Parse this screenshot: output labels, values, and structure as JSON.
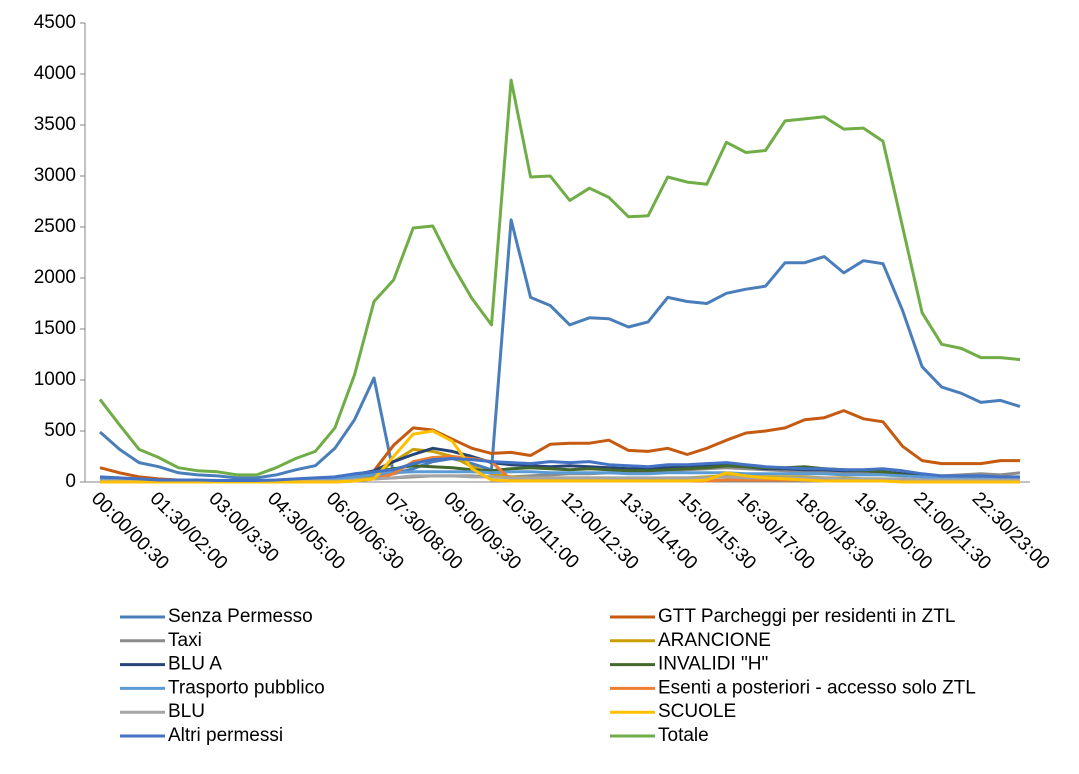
{
  "chart_data": {
    "type": "line",
    "categories": [
      "00:00/00:30",
      null,
      null,
      "01:30/02:00",
      null,
      null,
      "03:00/3:30",
      null,
      null,
      "04:30/05:00",
      null,
      null,
      "06:00/06:30",
      null,
      null,
      "07:30/08:00",
      null,
      null,
      "09:00/09:30",
      null,
      null,
      "10:30/11:00",
      null,
      null,
      "12:00/12:30",
      null,
      null,
      "13:30/14:00",
      null,
      null,
      "15:00/15:30",
      null,
      null,
      "16:30/17:00",
      null,
      null,
      "18:00/18:30",
      null,
      null,
      "19:30/20:00",
      null,
      null,
      "21:00/21:30",
      null,
      null,
      "22:30/23:00",
      null,
      null
    ],
    "ylim": [
      0,
      4500
    ],
    "yticks": [
      0,
      500,
      1000,
      1500,
      2000,
      2500,
      3000,
      3500,
      4000,
      4500
    ],
    "grid": false,
    "series": [
      {
        "name": "Senza Permesso",
        "color": "#4a7ebb",
        "values": [
          490,
          320,
          190,
          150,
          90,
          70,
          60,
          40,
          40,
          70,
          120,
          160,
          330,
          610,
          1020,
          80,
          130,
          200,
          230,
          180,
          120,
          2570,
          1810,
          1730,
          1540,
          1610,
          1600,
          1520,
          1570,
          1810,
          1770,
          1750,
          1850,
          1890,
          1920,
          2150,
          2150,
          2210,
          2050,
          2170,
          2140,
          1680,
          1130,
          930,
          870,
          780,
          800,
          740
        ]
      },
      {
        "name": "GTT Parcheggi per residenti in ZTL",
        "color": "#c55a11",
        "values": [
          140,
          90,
          50,
          30,
          20,
          15,
          10,
          10,
          10,
          10,
          20,
          30,
          40,
          70,
          110,
          360,
          530,
          510,
          420,
          330,
          280,
          290,
          260,
          370,
          380,
          380,
          410,
          310,
          300,
          330,
          270,
          330,
          410,
          480,
          500,
          530,
          610,
          630,
          700,
          620,
          590,
          350,
          210,
          180,
          180,
          180,
          210,
          210
        ]
      },
      {
        "name": "Taxi",
        "color": "#8c8c8c",
        "values": [
          30,
          20,
          15,
          10,
          10,
          5,
          5,
          5,
          5,
          5,
          10,
          10,
          15,
          20,
          30,
          40,
          50,
          60,
          60,
          60,
          50,
          50,
          60,
          70,
          80,
          80,
          90,
          90,
          100,
          110,
          120,
          130,
          140,
          130,
          120,
          110,
          100,
          100,
          90,
          90,
          80,
          70,
          60,
          60,
          70,
          80,
          70,
          90
        ]
      },
      {
        "name": "ARANCIONE",
        "color": "#c9a000",
        "values": [
          10,
          5,
          5,
          0,
          0,
          0,
          0,
          0,
          0,
          0,
          0,
          0,
          5,
          20,
          60,
          200,
          320,
          300,
          250,
          150,
          80,
          50,
          40,
          40,
          40,
          40,
          40,
          30,
          30,
          40,
          40,
          50,
          60,
          60,
          50,
          50,
          50,
          40,
          40,
          30,
          30,
          20,
          20,
          10,
          10,
          10,
          10,
          10
        ]
      },
      {
        "name": "BLU A",
        "color": "#264478",
        "values": [
          40,
          30,
          20,
          15,
          10,
          10,
          10,
          5,
          5,
          10,
          15,
          20,
          40,
          70,
          110,
          200,
          270,
          330,
          300,
          250,
          190,
          170,
          160,
          150,
          160,
          150,
          140,
          130,
          130,
          140,
          150,
          160,
          170,
          150,
          130,
          130,
          120,
          120,
          110,
          110,
          100,
          80,
          60,
          50,
          40,
          40,
          40,
          40
        ]
      },
      {
        "name": "INVALIDI \"H\"",
        "color": "#43682b",
        "values": [
          20,
          15,
          10,
          5,
          5,
          5,
          5,
          5,
          5,
          10,
          10,
          15,
          30,
          60,
          100,
          130,
          160,
          150,
          140,
          120,
          110,
          130,
          140,
          130,
          120,
          130,
          120,
          110,
          110,
          120,
          130,
          140,
          160,
          150,
          140,
          140,
          150,
          130,
          120,
          110,
          100,
          70,
          50,
          40,
          30,
          30,
          30,
          30
        ]
      },
      {
        "name": "Trasporto pubblico",
        "color": "#5b9bd5",
        "values": [
          20,
          15,
          10,
          10,
          10,
          10,
          10,
          10,
          10,
          10,
          15,
          20,
          30,
          50,
          70,
          90,
          100,
          100,
          100,
          100,
          90,
          100,
          100,
          90,
          90,
          90,
          90,
          80,
          80,
          90,
          90,
          90,
          90,
          80,
          80,
          80,
          80,
          80,
          70,
          70,
          70,
          60,
          50,
          40,
          30,
          30,
          30,
          30
        ]
      },
      {
        "name": "Esenti a posteriori - accesso solo ZTL",
        "color": "#ed7d31",
        "values": [
          0,
          0,
          0,
          0,
          0,
          0,
          0,
          0,
          0,
          0,
          0,
          0,
          0,
          10,
          30,
          80,
          200,
          240,
          250,
          230,
          200,
          20,
          10,
          10,
          10,
          10,
          10,
          10,
          10,
          10,
          10,
          10,
          20,
          20,
          20,
          20,
          20,
          20,
          10,
          10,
          10,
          10,
          10,
          5,
          5,
          5,
          5,
          5
        ]
      },
      {
        "name": "BLU",
        "color": "#a5a5a5",
        "values": [
          10,
          10,
          5,
          5,
          5,
          5,
          5,
          5,
          5,
          5,
          5,
          10,
          10,
          20,
          30,
          40,
          60,
          60,
          60,
          50,
          50,
          40,
          40,
          40,
          40,
          40,
          40,
          40,
          40,
          40,
          40,
          40,
          50,
          40,
          40,
          40,
          40,
          40,
          30,
          30,
          30,
          30,
          20,
          20,
          20,
          20,
          20,
          20
        ]
      },
      {
        "name": "SCUOLE",
        "color": "#ffc000",
        "values": [
          0,
          0,
          0,
          0,
          0,
          0,
          0,
          0,
          0,
          0,
          0,
          0,
          0,
          10,
          30,
          250,
          470,
          500,
          400,
          130,
          20,
          10,
          10,
          10,
          10,
          10,
          10,
          10,
          10,
          10,
          10,
          20,
          90,
          60,
          40,
          30,
          20,
          10,
          10,
          10,
          10,
          0,
          0,
          0,
          0,
          0,
          0,
          0
        ]
      },
      {
        "name": "Altri permessi",
        "color": "#4472c4",
        "values": [
          50,
          40,
          30,
          20,
          20,
          20,
          15,
          15,
          15,
          20,
          30,
          40,
          50,
          80,
          100,
          120,
          180,
          220,
          230,
          220,
          200,
          190,
          180,
          200,
          190,
          200,
          170,
          160,
          150,
          170,
          170,
          180,
          190,
          170,
          150,
          140,
          130,
          130,
          120,
          120,
          130,
          110,
          80,
          60,
          60,
          60,
          50,
          50
        ]
      },
      {
        "name": "Totale",
        "color": "#70ad47",
        "values": [
          810,
          560,
          320,
          240,
          140,
          110,
          100,
          70,
          70,
          140,
          230,
          300,
          530,
          1050,
          1770,
          1980,
          2490,
          2510,
          2130,
          1800,
          1540,
          3940,
          2990,
          3000,
          2760,
          2880,
          2790,
          2600,
          2610,
          2990,
          2940,
          2920,
          3330,
          3230,
          3250,
          3540,
          3560,
          3580,
          3460,
          3470,
          3340,
          2500,
          1660,
          1350,
          1310,
          1220,
          1220,
          1200
        ]
      }
    ]
  }
}
